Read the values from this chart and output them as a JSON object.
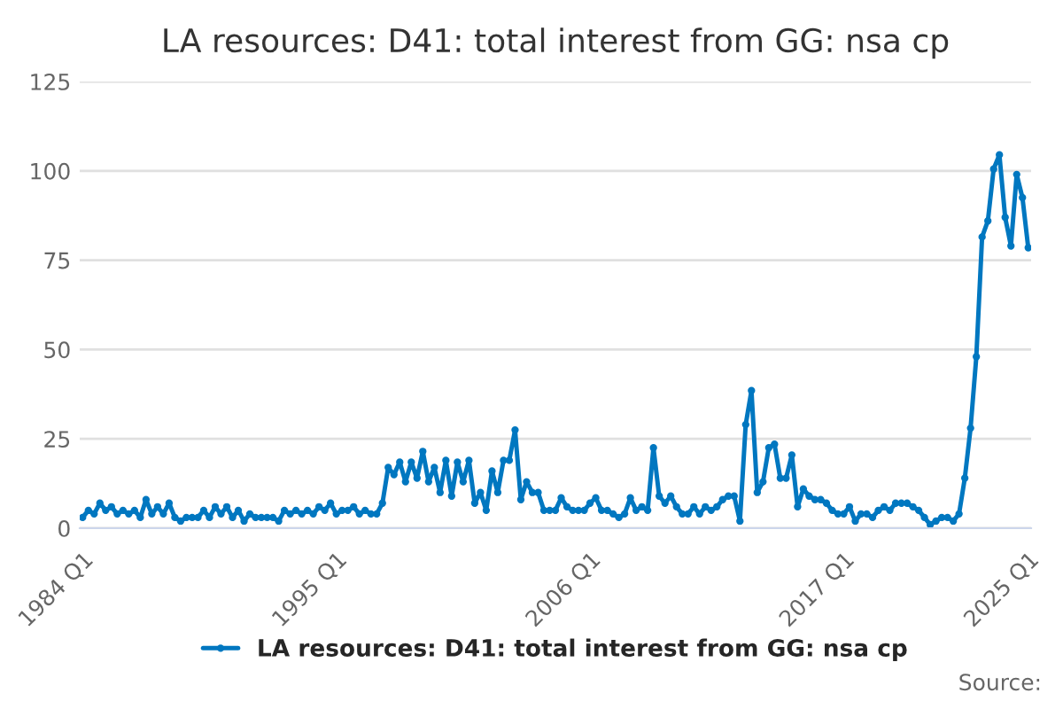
{
  "chart_data": {
    "type": "line",
    "title": "LA resources: D41: total interest from GG: nsa cp",
    "categories": [
      "1984 Q1",
      null,
      null,
      null,
      null,
      null,
      null,
      null,
      null,
      null,
      null,
      null,
      null,
      null,
      null,
      null,
      null,
      null,
      null,
      null,
      null,
      null,
      null,
      null,
      null,
      null,
      null,
      null,
      null,
      null,
      null,
      null,
      null,
      null,
      null,
      null,
      null,
      null,
      null,
      null,
      null,
      null,
      null,
      null,
      "1995 Q1",
      null,
      null,
      null,
      null,
      null,
      null,
      null,
      null,
      null,
      null,
      null,
      null,
      null,
      null,
      null,
      null,
      null,
      null,
      null,
      null,
      null,
      null,
      null,
      null,
      null,
      null,
      null,
      null,
      null,
      null,
      null,
      null,
      null,
      null,
      null,
      null,
      null,
      null,
      null,
      null,
      null,
      null,
      null,
      "2006 Q1",
      null,
      null,
      null,
      null,
      null,
      null,
      null,
      null,
      null,
      null,
      null,
      null,
      null,
      null,
      null,
      null,
      null,
      null,
      null,
      null,
      null,
      null,
      null,
      null,
      null,
      null,
      null,
      null,
      null,
      null,
      null,
      null,
      null,
      null,
      null,
      null,
      null,
      null,
      null,
      null,
      null,
      null,
      null,
      "2017 Q1",
      null,
      null,
      null,
      null,
      null,
      null,
      null,
      null,
      null,
      null,
      null,
      null,
      null,
      null,
      null,
      null,
      null,
      null,
      null,
      null,
      null,
      null,
      null,
      null,
      null,
      null,
      null,
      null,
      null,
      null,
      null,
      "2025 Q1"
    ],
    "series": [
      {
        "name": "LA resources: D41: total interest from GG: nsa cp",
        "color": "#0077c0",
        "values": [
          3,
          5,
          4,
          7,
          5,
          6,
          4,
          5,
          4,
          5,
          3,
          8,
          4,
          6,
          4,
          7,
          3,
          2,
          3,
          3,
          3,
          5,
          3,
          6,
          4,
          6,
          3,
          5,
          2,
          4,
          3,
          3,
          3,
          3,
          2,
          5,
          4,
          5,
          4,
          5,
          4,
          6,
          5,
          7,
          4,
          5,
          5,
          6,
          4,
          5,
          4,
          4,
          7,
          17,
          15,
          18.5,
          13,
          18.5,
          14,
          21.5,
          13,
          17,
          10,
          19,
          9,
          18.5,
          13,
          19,
          7,
          10,
          5,
          16,
          10,
          19,
          19,
          27.5,
          8,
          13,
          10,
          10,
          5,
          5,
          5,
          8.5,
          6,
          5,
          5,
          5,
          7,
          8.5,
          5,
          5,
          4,
          3,
          4,
          8.5,
          5,
          6,
          5,
          22.5,
          9,
          7,
          9,
          6,
          4,
          4,
          6,
          4,
          6,
          5,
          6,
          8,
          9,
          9,
          2,
          29,
          38.5,
          10,
          13,
          22.5,
          23.5,
          14,
          14,
          20.5,
          6,
          11,
          9,
          8,
          8,
          7,
          5,
          4,
          4,
          6,
          2,
          4,
          4,
          3,
          5,
          6,
          5,
          7,
          7,
          7,
          6,
          5,
          3,
          1,
          2,
          3,
          3,
          2,
          4,
          14,
          28,
          48,
          81.5,
          86,
          100.5,
          104.5,
          87,
          79,
          99,
          92.5,
          78.5
        ]
      }
    ],
    "ylim": [
      0,
      125
    ],
    "yticks": [
      0,
      25,
      50,
      75,
      100,
      125
    ],
    "grid": "y",
    "legend": "bottom",
    "marker": "circle",
    "line_style": "solid",
    "annotations": [
      "Source:"
    ]
  }
}
